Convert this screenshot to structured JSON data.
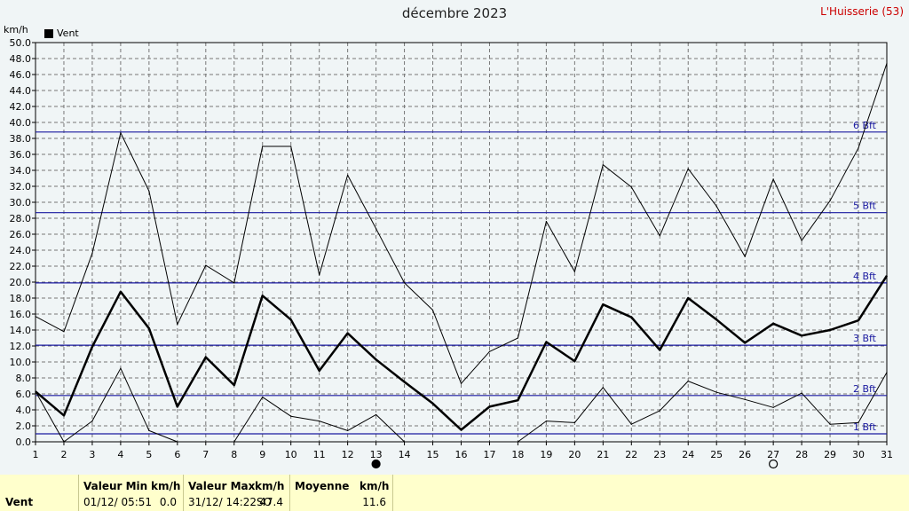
{
  "header": {
    "title": "décembre 2023",
    "station": "L'Huisserie (53)",
    "unit": "km/h"
  },
  "legend": {
    "label": "Vent",
    "color": "#000000"
  },
  "colors": {
    "background": "#f0f5f6",
    "beaufort_line": "#1a1aa0",
    "beaufort_text": "#1a1aa0",
    "series": "#000000"
  },
  "chart_data": {
    "type": "line",
    "title": "décembre 2023",
    "ylabel": "km/h",
    "ylim": [
      0,
      50
    ],
    "yticks": [
      "0.0",
      "2.0",
      "4.0",
      "6.0",
      "8.0",
      "10.0",
      "12.0",
      "14.0",
      "16.0",
      "18.0",
      "20.0",
      "22.0",
      "24.0",
      "26.0",
      "28.0",
      "30.0",
      "32.0",
      "34.0",
      "36.0",
      "38.0",
      "40.0",
      "42.0",
      "44.0",
      "46.0",
      "48.0",
      "50.0"
    ],
    "x": [
      1,
      2,
      3,
      4,
      5,
      6,
      7,
      8,
      9,
      10,
      11,
      12,
      13,
      14,
      15,
      16,
      17,
      18,
      19,
      20,
      21,
      22,
      23,
      24,
      25,
      26,
      27,
      28,
      29,
      30,
      31
    ],
    "grid": true,
    "legend_position": "top-left",
    "series": [
      {
        "name": "Vent",
        "role": "mean",
        "values": [
          6.3,
          3.3,
          11.9,
          18.8,
          14.2,
          4.4,
          10.6,
          7.1,
          18.3,
          15.3,
          8.9,
          13.6,
          10.3,
          7.5,
          4.8,
          1.5,
          4.4,
          5.2,
          12.5,
          10.1,
          17.2,
          15.6,
          11.5,
          18.0,
          15.3,
          12.4,
          14.8,
          13.3,
          14.0,
          15.2,
          20.8
        ]
      },
      {
        "role": "max",
        "values": [
          15.7,
          13.8,
          23.6,
          38.7,
          31.4,
          14.7,
          22.1,
          19.9,
          37.0,
          37.0,
          20.9,
          33.4,
          26.7,
          19.9,
          16.5,
          7.3,
          11.3,
          13.0,
          27.6,
          21.3,
          34.7,
          31.9,
          25.8,
          34.2,
          29.5,
          23.2,
          32.9,
          25.2,
          30.2,
          36.8,
          47.4
        ]
      },
      {
        "role": "min",
        "values": [
          6.3,
          0.0,
          2.6,
          9.2,
          1.4,
          0.0,
          null,
          0.0,
          5.6,
          3.2,
          2.6,
          1.4,
          3.4,
          0.0,
          null,
          null,
          null,
          0.0,
          2.6,
          2.4,
          6.8,
          2.2,
          3.9,
          7.6,
          6.2,
          5.3,
          4.3,
          6.1,
          2.2,
          2.4,
          8.7
        ]
      }
    ],
    "beaufort": [
      {
        "label": "1 Bft",
        "value": 1.0
      },
      {
        "label": "2 Bft",
        "value": 5.8
      },
      {
        "label": "3 Bft",
        "value": 12.1
      },
      {
        "label": "4 Bft",
        "value": 19.9
      },
      {
        "label": "5 Bft",
        "value": 28.7
      },
      {
        "label": "6 Bft",
        "value": 38.8
      }
    ],
    "moon_phases": [
      {
        "day": 13,
        "phase": "new"
      },
      {
        "day": 27,
        "phase": "full"
      }
    ]
  },
  "stats": {
    "row_label": "Vent",
    "min": {
      "header": "Valeur Min",
      "unit": "km/h",
      "when": "01/12/  05:51",
      "value": "0.0"
    },
    "max": {
      "header": "Valeur Max",
      "unit": "km/h",
      "when": "31/12/  14:22SO",
      "value": "47.4"
    },
    "avg": {
      "header": "Moyenne",
      "unit": "km/h",
      "value": "11.6"
    }
  }
}
